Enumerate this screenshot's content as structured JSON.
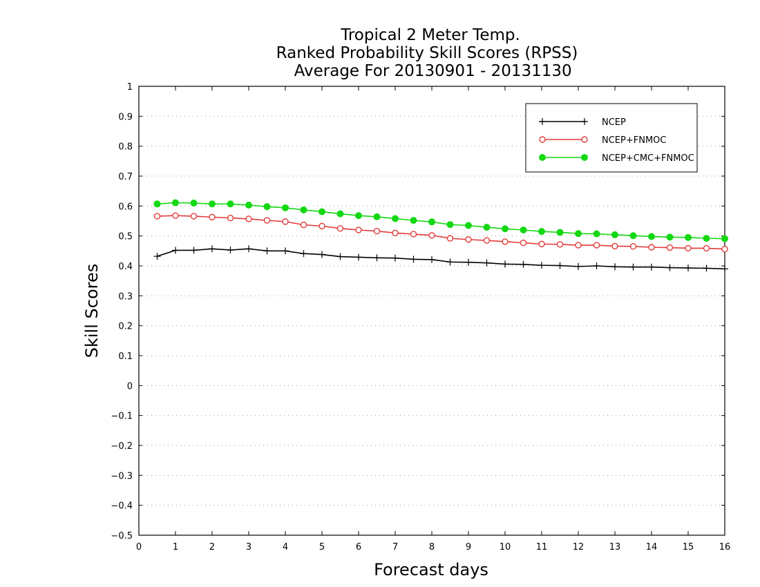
{
  "chart_data": {
    "type": "line",
    "title_lines": [
      "Tropical 2 Meter Temp.",
      "Ranked Probability Skill Scores (RPSS)",
      " Average For 20130901 - 20131130"
    ],
    "xlabel": "Forecast days",
    "ylabel": "Skill Scores",
    "xlim": [
      0,
      16
    ],
    "ylim": [
      -0.5,
      1
    ],
    "x_ticks": [
      "0",
      "1",
      "2",
      "3",
      "4",
      "5",
      "6",
      "7",
      "8",
      "9",
      "10",
      "11",
      "12",
      "13",
      "14",
      "15",
      "16"
    ],
    "y_ticks": [
      "1",
      "0.9",
      "0.8",
      "0.7",
      "0.6",
      "0.5",
      "0.4",
      "0.3",
      "0.2",
      "0.1",
      "0",
      "−0.1",
      "−0.2",
      "−0.3",
      "−0.4",
      "−0.5"
    ],
    "grid": true,
    "legend_position": "top-right",
    "x": [
      0.5,
      1,
      1.5,
      2,
      2.5,
      3,
      3.5,
      4,
      4.5,
      5,
      5.5,
      6,
      6.5,
      7,
      7.5,
      8,
      8.5,
      9,
      9.5,
      10,
      10.5,
      11,
      11.5,
      12,
      12.5,
      13,
      13.5,
      14,
      14.5,
      15,
      15.5,
      16
    ],
    "series": [
      {
        "name": "NCEP",
        "color": "#000000",
        "marker": "plus",
        "values": [
          0.432,
          0.452,
          0.452,
          0.457,
          0.453,
          0.457,
          0.45,
          0.45,
          0.441,
          0.438,
          0.431,
          0.429,
          0.427,
          0.426,
          0.422,
          0.421,
          0.413,
          0.412,
          0.41,
          0.406,
          0.405,
          0.402,
          0.401,
          0.398,
          0.4,
          0.397,
          0.396,
          0.396,
          0.394,
          0.393,
          0.392,
          0.39
        ]
      },
      {
        "name": "NCEP+FNMOC",
        "color": "#e33a3a",
        "marker": "open-circle",
        "values": [
          0.566,
          0.568,
          0.566,
          0.563,
          0.56,
          0.557,
          0.552,
          0.548,
          0.537,
          0.533,
          0.525,
          0.52,
          0.516,
          0.51,
          0.506,
          0.502,
          0.492,
          0.488,
          0.485,
          0.481,
          0.477,
          0.473,
          0.472,
          0.469,
          0.469,
          0.466,
          0.465,
          0.462,
          0.461,
          0.459,
          0.459,
          0.456
        ]
      },
      {
        "name": "NCEP+CMC+FNMOC",
        "color": "#13d813",
        "marker": "filled-circle",
        "values": [
          0.607,
          0.611,
          0.61,
          0.607,
          0.607,
          0.603,
          0.598,
          0.594,
          0.587,
          0.581,
          0.574,
          0.568,
          0.564,
          0.558,
          0.552,
          0.547,
          0.538,
          0.535,
          0.529,
          0.524,
          0.52,
          0.515,
          0.512,
          0.508,
          0.507,
          0.504,
          0.501,
          0.498,
          0.496,
          0.495,
          0.492,
          0.491
        ]
      }
    ]
  }
}
